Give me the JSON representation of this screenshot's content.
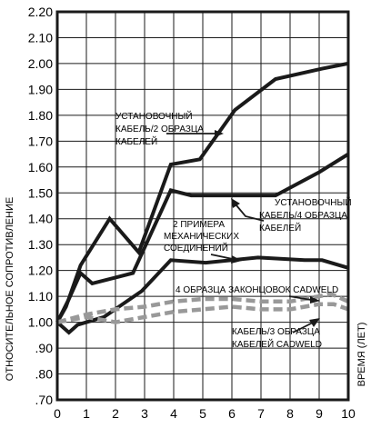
{
  "chart_data": {
    "type": "line",
    "title": "",
    "xlabel": "ВРЕМЯ (ЛЕТ)",
    "ylabel": "ОТНОСИТЕЛЬНОЕ СОПРОТИВЛЕНИЕ",
    "xlim": [
      0,
      10
    ],
    "ylim": [
      0.7,
      2.2
    ],
    "grid": true,
    "x_ticks": [
      "0",
      "1",
      "2",
      "3",
      "4",
      "5",
      "6",
      "7",
      "8",
      "9",
      "10"
    ],
    "y_ticks": [
      ".70",
      ".80",
      ".90",
      "1.00",
      "1.10",
      "1.20",
      "1.30",
      "1.40",
      "1.50",
      "1.60",
      "1.70",
      "1.80",
      "1.90",
      "2.00",
      "2.10",
      "2.20"
    ],
    "colors": {
      "solid": "#1a1a1a",
      "dashed": "#999999",
      "grid": "#1a1a1a"
    },
    "series": [
      {
        "style": "solid",
        "x": [
          0,
          0.4,
          0.8,
          1.2,
          2.6,
          3.9,
          4.6,
          6.4,
          7.0,
          7.5,
          9.0,
          10.0
        ],
        "y": [
          1.0,
          1.09,
          1.19,
          1.15,
          1.19,
          1.51,
          1.49,
          1.49,
          1.49,
          1.49,
          1.58,
          1.65
        ]
      },
      {
        "style": "solid",
        "x": [
          0,
          0.3,
          0.8,
          1.8,
          2.8,
          3.9,
          4.9,
          6.1,
          7.5,
          9.1,
          10.0
        ],
        "y": [
          1.0,
          1.06,
          1.22,
          1.4,
          1.27,
          1.61,
          1.63,
          1.82,
          1.94,
          1.98,
          2.0
        ]
      },
      {
        "style": "solid",
        "x": [
          0,
          0.4,
          0.7,
          1.6,
          2.9,
          3.9,
          5.1,
          6.9,
          8.5,
          9.1,
          10.0
        ],
        "y": [
          1.0,
          0.96,
          0.99,
          1.02,
          1.12,
          1.24,
          1.23,
          1.25,
          1.24,
          1.24,
          1.21
        ]
      },
      {
        "style": "dashed",
        "x": [
          0,
          1.0,
          2.0,
          3.0,
          4.0,
          5.0,
          6.0,
          7.0,
          8.0,
          9.0,
          9.4,
          10.0
        ],
        "y": [
          1.0,
          1.03,
          1.05,
          1.06,
          1.08,
          1.09,
          1.09,
          1.08,
          1.08,
          1.1,
          1.11,
          1.08
        ]
      },
      {
        "style": "dashed",
        "x": [
          0,
          1.0,
          2.0,
          3.0,
          4.0,
          5.0,
          6.0,
          7.0,
          8.0,
          9.0,
          9.5,
          10.0
        ],
        "y": [
          1.0,
          1.02,
          1.0,
          1.02,
          1.04,
          1.05,
          1.06,
          1.05,
          1.05,
          1.07,
          1.07,
          1.05
        ]
      }
    ],
    "annotations": [
      {
        "id": "a1",
        "lines": [
          "УСТАНОВОЧНЫЙ",
          "КАБЕЛЬ/2 ОБРАЗЦА",
          "КАБЕЛЕЙ"
        ]
      },
      {
        "id": "a2",
        "lines": [
          "УСТАНОВОЧНЫЙ",
          "КАБЕЛЬ/4 ОБРАЗЦА",
          "КАБЕЛЕЙ"
        ]
      },
      {
        "id": "a3",
        "lines": [
          "2 ПРИМЕРА",
          "МЕХАНИЧЕСКИХ",
          "СОЕДИНЕНИЙ"
        ]
      },
      {
        "id": "a4",
        "lines": [
          "4 ОБРАЗЦА ЗАКОНЦОВОК CADWELD"
        ]
      },
      {
        "id": "a5",
        "lines": [
          "КАБЕЛЬ/3 ОБРАЗЦА",
          "КАБЕЛЕЙ CADWELD"
        ]
      }
    ]
  }
}
